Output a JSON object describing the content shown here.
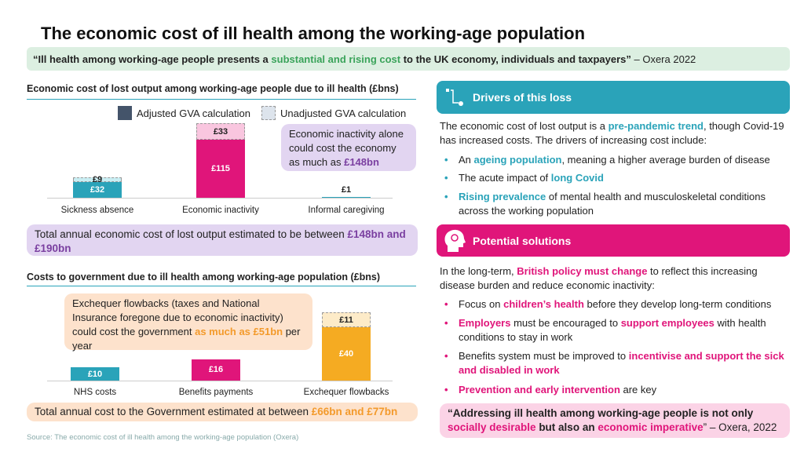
{
  "title": "The economic cost of ill health among the working-age population",
  "quote": {
    "a": "“Ill health among working-age people presents a ",
    "hl": "substantial and rising cost",
    "b": " to the UK economy, individuals and taxpayers”",
    " src": "",
    "source": " – Oxera 2022"
  },
  "colors": {
    "teal": "#2aa3b9",
    "pink": "#e0157a",
    "orange": "#f5ab22",
    "purple": "#7a3fa0",
    "navy": "#44546a"
  },
  "chart_data": [
    {
      "type": "bar",
      "stacked": true,
      "title": "Economic cost of lost output among working-age people due to ill health (£bns)",
      "legend": [
        "Adjusted GVA calculation",
        "Unadjusted GVA calculation"
      ],
      "categories": [
        "Sickness absence",
        "Economic inactivity",
        "Informal caregiving"
      ],
      "series": [
        {
          "name": "Adjusted GVA calculation",
          "values": [
            32,
            115,
            1
          ],
          "labels": [
            "£32",
            "£115",
            "£1"
          ]
        },
        {
          "name": "Unadjusted GVA calculation",
          "values": [
            9,
            33,
            0
          ],
          "labels": [
            "£9",
            "£33",
            ""
          ]
        }
      ],
      "colors": [
        "#2aa3b9",
        "#e0157a",
        "#2aa3b9"
      ],
      "top_colors": [
        "#c9eef3",
        "#f9c6df",
        "#c9eef3"
      ]
    },
    {
      "type": "bar",
      "stacked": true,
      "title": "Costs to government due to ill health among working-age population (£bns)",
      "categories": [
        "NHS costs",
        "Benefits payments",
        "Exchequer flowbacks"
      ],
      "series": [
        {
          "name": "base",
          "values": [
            10,
            16,
            40
          ],
          "labels": [
            "£10",
            "£16",
            "£40"
          ]
        },
        {
          "name": "upper",
          "values": [
            0,
            0,
            11
          ],
          "labels": [
            "",
            "",
            "£11"
          ]
        }
      ],
      "colors": [
        "#2aa3b9",
        "#e0157a",
        "#f5ab22"
      ],
      "top_colors": [
        "",
        "",
        "#fdebc8"
      ]
    }
  ],
  "callout1": {
    "a": "Economic inactivity alone could cost the economy as much as ",
    "hl": "£148bn"
  },
  "total1": {
    "a": "Total annual economic cost of lost output estimated to be between ",
    "hl": "£148bn and £190bn"
  },
  "callout2": {
    "a": "Exchequer flowbacks (taxes and National Insurance foregone due to economic inactivity) could cost the government ",
    "hl": "as much as £51bn",
    "b": " per year"
  },
  "total2": {
    "a": "Total annual cost to the Government estimated at between ",
    "hl": "£66bn and £77bn"
  },
  "source": "Source: The economic cost of ill health among the working-age population (Oxera)",
  "drivers": {
    "header": "Drivers of this loss",
    "icon": "flow-icon",
    "intro": {
      "a": "The economic cost of lost output is a ",
      "hl": "pre-pandemic trend",
      "b": ", though Covid-19 has increased costs. The drivers of increasing cost include:"
    },
    "bullets": [
      {
        "a": "An ",
        "hl": "ageing population",
        "b": ", meaning a higher average burden of disease"
      },
      {
        "a": "The acute impact of ",
        "hl": "long Covid",
        "b": ""
      },
      {
        "a": "",
        "hl": "Rising prevalence",
        "b": " of mental health and musculoskeletal conditions across the working population"
      }
    ]
  },
  "solutions": {
    "header": "Potential solutions",
    "icon": "head-idea-icon",
    "intro": {
      "a": "In the long-term, ",
      "hl": "British policy must change",
      "b": " to reflect this increasing disease burden and reduce economic inactivity:"
    },
    "bullets": [
      {
        "a": "Focus on ",
        "hl": "children’s health",
        "b": " before they develop long-term conditions"
      },
      {
        "a": "",
        "hl": "Employers",
        "b": " must be encouraged to ",
        "hl2": "support employees",
        "c": " with health conditions to stay in work"
      },
      {
        "a": "Benefits system must be improved to ",
        "hl": "incentivise and support the sick and disabled in work",
        "b": ""
      },
      {
        "a": "",
        "hl": "Prevention and early intervention",
        "b": " are key"
      }
    ]
  },
  "quote2": {
    "a": "“Addressing ill health among working-age people is not only ",
    "hl": "socially desirable",
    "b": " but also an ",
    "hl2": "economic imperative",
    "c": "” – Oxera, 2022"
  }
}
